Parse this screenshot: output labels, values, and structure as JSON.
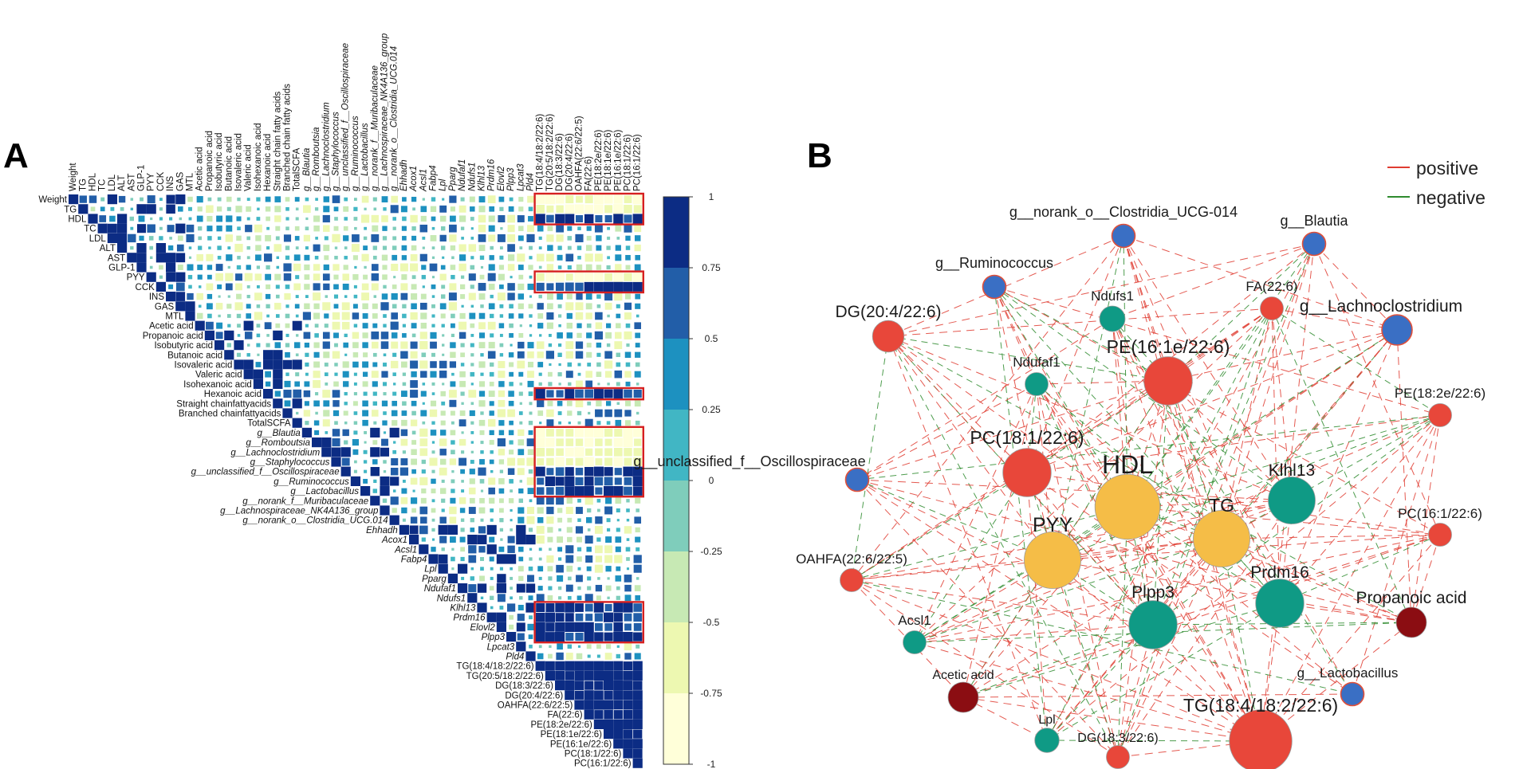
{
  "panel_labels": {
    "a": "A",
    "b": "B"
  },
  "legend": {
    "positive": "positive",
    "negative": "negative",
    "positive_color": "#e03c31",
    "negative_color": "#2e8b2e"
  },
  "chart_data": [
    {
      "type": "heatmap",
      "title": "",
      "variables": [
        "Weight",
        "TG",
        "HDL",
        "TC",
        "LDL",
        "ALT",
        "AST",
        "GLP-1",
        "PYY",
        "CCK",
        "INS",
        "GAS",
        "MTL",
        "Acetic acid",
        "Propanoic acid",
        "Isobutyric acid",
        "Butanoic acid",
        "Isovaleric acid",
        "Valeric acid",
        "Isohexanoic acid",
        "Hexanoic acid",
        "Straight chain fatty acids",
        "Branched chain fatty acids",
        "TotalSCFA",
        "g__Blautia",
        "g__Romboutsia",
        "g__Lachnoclostridium",
        "g__Staphylococcus",
        "g__unclassified_f__Oscillospiraceae",
        "g__Ruminococcus",
        "g__Lactobacillus",
        "g__norank_f__Muribaculaceae",
        "g__Lachnospiraceae_NK4A136_group",
        "g__norank_o__Clostridia_UCG.014",
        "Ehhadh",
        "Acox1",
        "Acsl1",
        "Fabp4",
        "Lpl",
        "Pparg",
        "Ndufaf1",
        "Ndufs1",
        "Klhl13",
        "Prdm16",
        "Elovl2",
        "Plpp3",
        "Lpcat3",
        "Pld4",
        "TG(18:4/18:2/22:6)",
        "TG(20:5/18:2/22:6)",
        "DG(18:3/22:6)",
        "DG(20:4/22:6)",
        "OAHFA(22:6/22:5)",
        "FA(22:6)",
        "PE(18:2e/22:6)",
        "PE(18:1e/22:6)",
        "PE(16:1e/22:6)",
        "PC(18:1/22:6)",
        "PC(16:1/22:6)"
      ],
      "row_labels_display": [
        "Weight",
        "TG",
        "HDL",
        "TC",
        "LDL",
        "ALT",
        "AST",
        "GLP-1",
        "PYY",
        "CCK",
        "INS",
        "GAS",
        "MTL",
        "Acetic acid",
        "Propanoic acid",
        "Isobutyric acid",
        "Butanoic acid",
        "Isovaleric acid",
        "Valeric acid",
        "Isohexanoic acid",
        "Hexanoic acid",
        "Straight chainfattyacids",
        "Branched chainfattyacids",
        "TotalSCFA",
        "g__Blautia",
        "g__Romboutsia",
        "g__Lachnoclostridium",
        "g__Staphylococcus",
        "g__unclassified_f__Oscillospiraceae",
        "g__Ruminococcus",
        "g__Lactobacillus",
        "g__norank_f__Muribaculaceae",
        "g__Lachnospiraceae_NK4A136_group",
        "g__norank_o__Clostridia_UCG.014",
        "Ehhadh",
        "Acox1",
        "Acsl1",
        "Fabp4",
        "Lpl",
        "Pparg",
        "Ndufaf1",
        "Ndufs1",
        "Klhl13",
        "Prdm16",
        "Elovl2",
        "Plpp3",
        "Lpcat3",
        "Pld4",
        "TG(18:4/18:2/22:6)",
        "TG(20:5/18:2/22:6)",
        "DG(18:3/22:6)",
        "DG(20:4/22:6)",
        "OAHFA(22:6/22:5)",
        "FA(22:6)",
        "PE(18:2e/22:6)",
        "PE(18:1e/22:6)",
        "PE(16:1e/22:6)",
        "PC(18:1/22:6)",
        "PC(16:1/22:6)"
      ],
      "diagonal_value": 1,
      "colorbar": {
        "ticks": [
          "1",
          "0.75",
          "0.5",
          "0.25",
          "0",
          "-0.25",
          "-0.5",
          "-0.75",
          "-1"
        ],
        "range": [
          -1,
          1
        ],
        "colors": [
          "#ffffd9",
          "#edf8b1",
          "#c7e9b4",
          "#7fcdbb",
          "#41b6c4",
          "#1d91c0",
          "#225ea8",
          "#0c2c84"
        ]
      },
      "highlight_boxes": [
        {
          "rows": [
            "Weight",
            "TG",
            "HDL"
          ],
          "columns": "TG(18:4/18:2/22:6) to PC(16:1/22:6)"
        },
        {
          "rows": [
            "PYY",
            "CCK"
          ],
          "columns": "TG(18:4/18:2/22:6) to PC(16:1/22:6)"
        },
        {
          "rows": [
            "Hexanoic acid"
          ],
          "columns": "TG(18:4/18:2/22:6) to PC(16:1/22:6)"
        },
        {
          "rows": [
            "g__Blautia",
            "g__Romboutsia",
            "g__Lachnoclostridium",
            "g__Staphylococcus",
            "g__unclassified_f__Oscillospiraceae",
            "g__Ruminococcus",
            "g__Lactobacillus"
          ],
          "columns": "TG(18:4/18:2/22:6) to PC(16:1/22:6)"
        },
        {
          "rows": [
            "Klhl13",
            "Prdm16",
            "Elovl2",
            "Plpp3"
          ],
          "columns": "TG(18:4/18:2/22:6) to PC(16:1/22:6)"
        }
      ]
    },
    {
      "type": "network",
      "title": "",
      "nodes": [
        {
          "id": "g__norank_o__Clostridia_UCG-014",
          "label": "g__norank_o__Clostridia_UCG-014",
          "group": "microbe",
          "size": 1
        },
        {
          "id": "g__Blautia",
          "label": "g__Blautia",
          "group": "microbe",
          "size": 1
        },
        {
          "id": "g__Ruminococcus",
          "label": "g__Ruminococcus",
          "group": "microbe",
          "size": 1
        },
        {
          "id": "Ndufs1",
          "label": "Ndufs1",
          "group": "gene",
          "size": 1.2
        },
        {
          "id": "FA(22:6)",
          "label": "FA(22:6)",
          "group": "lipid",
          "size": 1
        },
        {
          "id": "g__Lachnoclostridium",
          "label": "g__Lachnoclostridium",
          "group": "microbe",
          "size": 1.6
        },
        {
          "id": "DG(20:4/22:6)",
          "label": "DG(20:4/22:6)",
          "group": "lipid",
          "size": 1.7
        },
        {
          "id": "Ndufaf1",
          "label": "Ndufaf1",
          "group": "gene",
          "size": 1
        },
        {
          "id": "PE(16:1e/22:6)",
          "label": "PE(16:1e/22:6)",
          "group": "lipid",
          "size": 3.1
        },
        {
          "id": "PE(18:2e/22:6)",
          "label": "PE(18:2e/22:6)",
          "group": "lipid",
          "size": 1
        },
        {
          "id": "g__unclassified_f__Oscillospiraceae",
          "label": "g__unclassified_f__Oscillospiraceae",
          "group": "microbe",
          "size": 1
        },
        {
          "id": "PC(18:1/22:6)",
          "label": "PC(18:1/22:6)",
          "group": "lipid",
          "size": 3.1
        },
        {
          "id": "HDL",
          "label": "HDL",
          "group": "physiology",
          "size": 4.5
        },
        {
          "id": "Klhl13",
          "label": "Klhl13",
          "group": "gene",
          "size": 3
        },
        {
          "id": "TG",
          "label": "TG",
          "group": "physiology",
          "size": 3.8
        },
        {
          "id": "PC(16:1/22:6)",
          "label": "PC(16:1/22:6)",
          "group": "lipid",
          "size": 1
        },
        {
          "id": "PYY",
          "label": "PYY",
          "group": "physiology",
          "size": 3.8
        },
        {
          "id": "OAHFA(22:6/22:5)",
          "label": "OAHFA(22:6/22:5)",
          "group": "lipid",
          "size": 1
        },
        {
          "id": "Prdm16",
          "label": "Prdm16",
          "group": "gene",
          "size": 3.1
        },
        {
          "id": "Propanoic acid",
          "label": "Propanoic acid",
          "group": "scfa",
          "size": 1.6
        },
        {
          "id": "Plpp3",
          "label": "Plpp3",
          "group": "gene",
          "size": 3.1
        },
        {
          "id": "Acsl1",
          "label": "Acsl1",
          "group": "gene",
          "size": 1
        },
        {
          "id": "Acetic acid",
          "label": "Acetic acid",
          "group": "scfa",
          "size": 1.6
        },
        {
          "id": "g__Lactobacillus",
          "label": "g__Lactobacillus",
          "group": "microbe",
          "size": 1
        },
        {
          "id": "Lpl",
          "label": "Lpl",
          "group": "gene",
          "size": 1.1
        },
        {
          "id": "DG(18:3/22:6)",
          "label": "DG(18:3/22:6)",
          "group": "lipid",
          "size": 1
        },
        {
          "id": "TG(18:4/18:2/22:6)",
          "label": "TG(18:4/18:2/22:6)",
          "group": "lipid",
          "size": 4.3
        }
      ],
      "group_colors": {
        "microbe": "#3a6fc4",
        "gene": "#0f9a85",
        "lipid": "#e8473a",
        "physiology": "#f5bd47",
        "scfa": "#8b0d12"
      },
      "edge_types": [
        "positive",
        "negative"
      ]
    }
  ]
}
